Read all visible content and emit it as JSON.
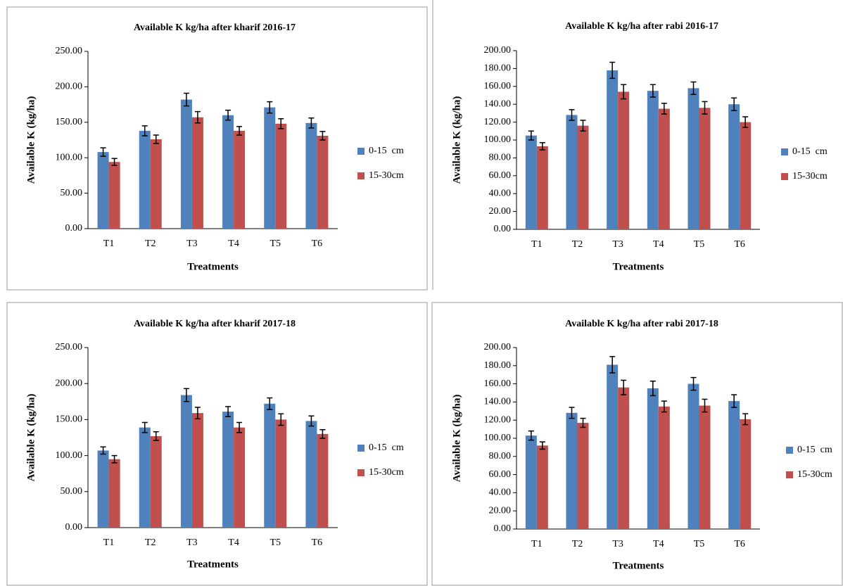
{
  "chart_data": [
    {
      "type": "bar",
      "title": "Available K kg/ha after kharif  2016-17",
      "x_label": "Treatments",
      "y_label": "Available K (kg/ha)",
      "categories": [
        "T1",
        "T2",
        "T3",
        "T4",
        "T5",
        "T6"
      ],
      "series": [
        {
          "name": "0-15  cm",
          "color": "#4f81bd",
          "values": [
            108,
            138,
            182,
            160,
            171,
            149
          ],
          "errors": [
            6,
            7,
            9,
            7,
            8,
            7
          ]
        },
        {
          "name": "15-30cm",
          "color": "#c0504d",
          "values": [
            94,
            126,
            157,
            138,
            148,
            131
          ],
          "errors": [
            5,
            6,
            8,
            6,
            7,
            6
          ]
        }
      ],
      "ylim": [
        0,
        250
      ],
      "yticks": [
        {
          "value": 0,
          "label": "0.00"
        },
        {
          "value": 50,
          "label": "50.00"
        },
        {
          "value": 100,
          "label": "100.00"
        },
        {
          "value": 150,
          "label": "150.00"
        },
        {
          "value": 200,
          "label": "200.00"
        },
        {
          "value": 250,
          "label": "250.00"
        }
      ],
      "legend": "right"
    },
    {
      "type": "bar",
      "title": "Available K kg/ha after rabi 2016-17",
      "x_label": "Treatments",
      "y_label": "Available K (kg/ha)",
      "categories": [
        "T1",
        "T2",
        "T3",
        "T4",
        "T5",
        "T6"
      ],
      "series": [
        {
          "name": "0-15  cm",
          "color": "#4f81bd",
          "values": [
            105,
            128,
            178,
            155,
            158,
            140
          ],
          "errors": [
            5,
            6,
            9,
            7,
            7,
            7
          ]
        },
        {
          "name": "15-30cm",
          "color": "#c0504d",
          "values": [
            93,
            116,
            154,
            135,
            136,
            120
          ],
          "errors": [
            4,
            6,
            8,
            6,
            7,
            6
          ]
        }
      ],
      "ylim": [
        0,
        200
      ],
      "yticks": [
        {
          "value": 0,
          "label": "0.00"
        },
        {
          "value": 20,
          "label": "20.00"
        },
        {
          "value": 40,
          "label": "40.00"
        },
        {
          "value": 60,
          "label": "60.00"
        },
        {
          "value": 80,
          "label": "80.00"
        },
        {
          "value": 100,
          "label": "100.00"
        },
        {
          "value": 120,
          "label": "120.00"
        },
        {
          "value": 140,
          "label": "140.00"
        },
        {
          "value": 160,
          "label": "160.00"
        },
        {
          "value": 180,
          "label": "180.00"
        },
        {
          "value": 200,
          "label": "200.00"
        }
      ],
      "legend": "right"
    },
    {
      "type": "bar",
      "title": "Available K kg/ha after kharif 2017-18",
      "x_label": "Treatments",
      "y_label": "Available K (kg/ha)",
      "categories": [
        "T1",
        "T2",
        "T3",
        "T4",
        "T5",
        "T6"
      ],
      "series": [
        {
          "name": "0-15  cm",
          "color": "#4f81bd",
          "values": [
            107,
            139,
            184,
            161,
            172,
            148
          ],
          "errors": [
            5,
            7,
            9,
            7,
            8,
            7
          ]
        },
        {
          "name": "15-30cm",
          "color": "#c0504d",
          "values": [
            95,
            127,
            159,
            139,
            150,
            130
          ],
          "errors": [
            5,
            6,
            8,
            7,
            8,
            6
          ]
        }
      ],
      "ylim": [
        0,
        250
      ],
      "yticks": [
        {
          "value": 0,
          "label": "0.00"
        },
        {
          "value": 50,
          "label": "50.00"
        },
        {
          "value": 100,
          "label": "100.00"
        },
        {
          "value": 150,
          "label": "150.00"
        },
        {
          "value": 200,
          "label": "200.00"
        },
        {
          "value": 250,
          "label": "250.00"
        }
      ],
      "legend": "right"
    },
    {
      "type": "bar",
      "title": "Available K kg/ha after rabi 2017-18",
      "x_label": "Treatments",
      "y_label": "Available K (kg/ha)",
      "categories": [
        "T1",
        "T2",
        "T3",
        "T4",
        "T5",
        "T6"
      ],
      "series": [
        {
          "name": "0-15  cm",
          "color": "#4f81bd",
          "values": [
            103,
            128,
            181,
            155,
            160,
            141
          ],
          "errors": [
            5,
            6,
            9,
            8,
            7,
            7
          ]
        },
        {
          "name": "15-30cm",
          "color": "#c0504d",
          "values": [
            92,
            117,
            156,
            135,
            136,
            121
          ],
          "errors": [
            4,
            5,
            8,
            6,
            7,
            6
          ]
        }
      ],
      "ylim": [
        0,
        200
      ],
      "yticks": [
        {
          "value": 0,
          "label": "0.00"
        },
        {
          "value": 20,
          "label": "20.00"
        },
        {
          "value": 40,
          "label": "40.00"
        },
        {
          "value": 60,
          "label": "60.00"
        },
        {
          "value": 80,
          "label": "80.00"
        },
        {
          "value": 100,
          "label": "100.00"
        },
        {
          "value": 120,
          "label": "120.00"
        },
        {
          "value": 140,
          "label": "140.00"
        },
        {
          "value": 160,
          "label": "160.00"
        },
        {
          "value": 180,
          "label": "180.00"
        },
        {
          "value": 200,
          "label": "200.00"
        }
      ],
      "legend": "right"
    }
  ]
}
